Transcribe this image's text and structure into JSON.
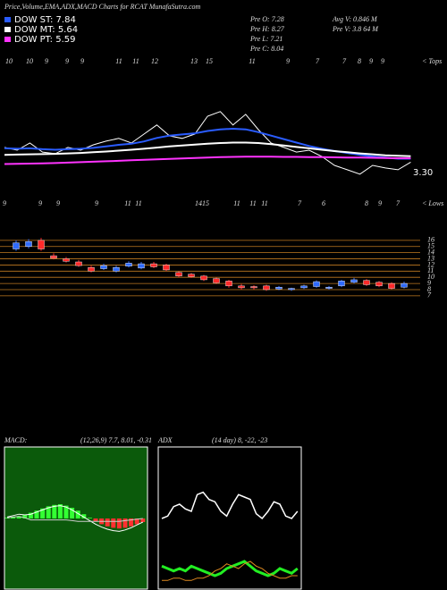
{
  "header": {
    "title": "Price,Volume,EMA,ADX,MACD Charts for RCAT MunafaSutra.com",
    "info": [
      "Pre  O: 7.28",
      "Pre  H: 8.27",
      "Pre  L: 7.21",
      "Pre  C: 8.04",
      "Avg  V: 0.846  M",
      "Pre  V: 3.8          64  M"
    ]
  },
  "chart_data": [
    {
      "type": "line",
      "ylim": [
        2,
        8
      ],
      "series": [
        {
          "values": [
            3.94,
            3.82,
            4.13,
            3.74,
            3.67,
            3.94,
            3.82,
            4.05,
            4.21,
            4.33,
            4.13,
            4.52,
            4.91,
            4.44,
            4.33,
            4.52,
            5.29,
            5.49,
            4.91,
            5.37,
            4.71,
            4.13,
            3.94,
            3.74,
            3.82,
            3.55,
            3.16,
            2.97,
            2.78,
            3.16,
            3.05,
            2.97,
            3.3
          ],
          "color": "#ffffff"
        },
        {
          "name": "DOW ST: 7.84",
          "color": "#2a5cff",
          "values": [
            3.9,
            3.88,
            3.9,
            3.86,
            3.84,
            3.86,
            3.88,
            3.92,
            3.98,
            4.05,
            4.1,
            4.2,
            4.35,
            4.45,
            4.5,
            4.55,
            4.65,
            4.72,
            4.75,
            4.72,
            4.6,
            4.45,
            4.3,
            4.15,
            4.0,
            3.88,
            3.78,
            3.7,
            3.62,
            3.55,
            3.5,
            3.45,
            3.45
          ]
        },
        {
          "name": "DOW MT: 5.64",
          "color": "#ffffff",
          "values": [
            3.62,
            3.63,
            3.64,
            3.65,
            3.66,
            3.68,
            3.7,
            3.73,
            3.76,
            3.8,
            3.84,
            3.88,
            3.93,
            3.98,
            4.02,
            4.06,
            4.1,
            4.13,
            4.15,
            4.15,
            4.13,
            4.08,
            4.02,
            3.96,
            3.9,
            3.84,
            3.78,
            3.73,
            3.68,
            3.64,
            3.6,
            3.58,
            3.56
          ]
        },
        {
          "name": "DOW PT: 5.59",
          "color": "#ff33ff",
          "values": [
            3.22,
            3.23,
            3.24,
            3.25,
            3.26,
            3.28,
            3.3,
            3.32,
            3.34,
            3.36,
            3.38,
            3.4,
            3.42,
            3.44,
            3.46,
            3.48,
            3.5,
            3.52,
            3.53,
            3.54,
            3.54,
            3.54,
            3.53,
            3.53,
            3.52,
            3.52,
            3.51,
            3.5,
            3.5,
            3.49,
            3.48,
            3.47,
            3.47
          ]
        }
      ],
      "last_label": "3.30",
      "tops": [
        "10",
        "10",
        "9",
        "9",
        "9",
        "11",
        "11",
        "12",
        "13",
        "15",
        "11",
        "9",
        "7",
        "7",
        "8",
        "9",
        "9"
      ],
      "tops_label": "< Tops",
      "lows": [
        "9",
        "9",
        "9",
        "9",
        "11",
        "11",
        "14",
        "15",
        "11",
        "11",
        "11",
        "7",
        "6",
        "8",
        "9",
        "7"
      ],
      "lows_label": "< Lows"
    },
    {
      "type": "candlestick",
      "ylim": [
        6.4,
        17
      ],
      "yticks": [
        16,
        15,
        14,
        13,
        12,
        11,
        10,
        9,
        8,
        7
      ],
      "grid_color": "#c07a20",
      "up_color": "#2f6bff",
      "down_color": "#ff2a2a",
      "open": [
        14.6,
        15.0,
        16.0,
        13.5,
        13.0,
        12.5,
        11.6,
        11.4,
        11.0,
        11.8,
        11.5,
        12.2,
        12.0,
        10.8,
        10.5,
        10.2,
        9.8,
        9.4,
        8.6,
        8.5,
        8.6,
        8.1,
        8.0,
        8.3,
        8.5,
        8.2,
        8.6,
        9.2,
        9.5,
        9.2,
        9.0,
        8.4
      ],
      "high": [
        16.0,
        16.2,
        16.4,
        13.9,
        13.3,
        12.8,
        11.9,
        12.2,
        11.9,
        12.6,
        12.5,
        12.5,
        12.2,
        11.0,
        10.7,
        10.4,
        10.0,
        9.6,
        8.9,
        8.7,
        8.8,
        8.6,
        8.3,
        8.8,
        9.5,
        8.6,
        9.6,
        9.9,
        9.7,
        9.4,
        9.2,
        9.3
      ],
      "low": [
        14.3,
        14.7,
        14.3,
        12.9,
        12.4,
        11.7,
        10.8,
        11.2,
        10.8,
        11.6,
        11.3,
        11.5,
        11.0,
        10.0,
        9.9,
        9.4,
        8.9,
        8.3,
        8.0,
        8.0,
        7.8,
        7.9,
        7.8,
        8.1,
        8.3,
        8.0,
        8.4,
        9.0,
        8.6,
        8.4,
        8.0,
        8.2
      ],
      "close": [
        15.6,
        15.8,
        14.6,
        13.1,
        12.6,
        11.9,
        11.0,
        11.9,
        11.6,
        12.3,
        12.2,
        11.7,
        11.2,
        10.2,
        10.1,
        9.6,
        9.1,
        8.6,
        8.3,
        8.3,
        8.0,
        8.4,
        8.2,
        8.6,
        9.3,
        8.4,
        9.4,
        9.6,
        8.8,
        8.6,
        8.2,
        9.0
      ]
    },
    {
      "type": "macd",
      "label": "MACD:",
      "params": "(12,26,9) 7.7,  8.01,  -0.31",
      "ylim": [
        -10,
        10
      ],
      "background": "#0b5a0b",
      "histogram": {
        "values": [
          0.1,
          0.2,
          0.3,
          0.5,
          0.8,
          1.1,
          1.4,
          1.7,
          1.9,
          2.0,
          1.8,
          1.5,
          1.1,
          0.6,
          0.1,
          -0.4,
          -0.8,
          -1.1,
          -1.3,
          -1.4,
          -1.3,
          -1.1,
          -0.8,
          -0.5
        ],
        "up_color": "#33ff33",
        "down_color": "#ff3030"
      },
      "series": [
        {
          "color": "#ffffff",
          "values": [
            0.2,
            0.4,
            0.6,
            0.5,
            0.6,
            0.9,
            1.2,
            1.5,
            1.7,
            1.8,
            1.6,
            1.2,
            0.7,
            0.2,
            -0.3,
            -0.8,
            -1.2,
            -1.5,
            -1.7,
            -1.8,
            -1.6,
            -1.3,
            -0.9,
            -0.5
          ]
        },
        {
          "color": "#cccccc",
          "values": [
            0.1,
            0.2,
            0.3,
            0.1,
            -0.2,
            -0.2,
            -0.2,
            -0.2,
            -0.2,
            -0.2,
            -0.2,
            -0.3,
            -0.4,
            -0.4,
            -0.4,
            -0.4,
            -0.4,
            -0.4,
            -0.4,
            -0.4,
            -0.3,
            -0.2,
            -0.1,
            0.0
          ]
        }
      ]
    },
    {
      "type": "adx",
      "label": "ADX",
      "params": "(14 day) 8,  -22,  -23",
      "ylim": [
        0,
        60
      ],
      "background": "#000000",
      "series": [
        {
          "color": "#ffffff",
          "width": 1.5,
          "values": [
            30,
            31,
            35,
            36,
            34,
            33,
            40,
            41,
            38,
            37,
            33,
            31,
            36,
            40,
            39,
            38,
            32,
            30,
            33,
            37,
            36,
            31,
            30,
            33
          ]
        },
        {
          "color": "#22ee22",
          "width": 3,
          "values": [
            10,
            9,
            8,
            9,
            8,
            10,
            9,
            8,
            7,
            6,
            7,
            9,
            10,
            11,
            12,
            10,
            8,
            7,
            6,
            7,
            9,
            8,
            7,
            9
          ]
        },
        {
          "color": "#e08a20",
          "width": 1,
          "values": [
            4,
            4,
            5,
            5,
            4,
            4,
            5,
            5,
            6,
            8,
            9,
            11,
            10,
            9,
            11,
            12,
            10,
            9,
            7,
            6,
            5,
            5,
            6,
            6
          ]
        }
      ]
    }
  ]
}
